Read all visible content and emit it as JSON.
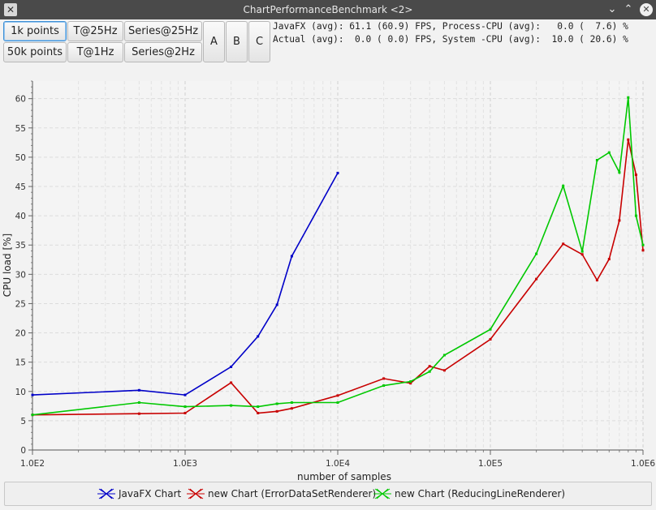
{
  "window": {
    "title": "ChartPerformanceBenchmark <2>",
    "icon": "x-app-icon",
    "controls": [
      "minimize-icon",
      "maximize-icon",
      "close-icon"
    ]
  },
  "toolbar": {
    "btn_1k": "1k points",
    "btn_50k": "50k points",
    "btn_t25": "T@25Hz",
    "btn_t1": "T@1Hz",
    "btn_s25": "Series@25Hz",
    "btn_s2": "Series@2Hz",
    "btn_a": "A",
    "btn_b": "B",
    "btn_c": "C"
  },
  "stats": {
    "line1": "JavaFX (avg): 61.1 (60.9) FPS, Process-CPU (avg):   0.0 (  7.6) %",
    "line2": "Actual (avg):  0.0 ( 0.0) FPS, System -CPU (avg):  10.0 ( 20.6) %"
  },
  "chart_data": {
    "type": "line",
    "xlabel": "number of samples",
    "ylabel": "CPU load [%]",
    "xscale": "log",
    "xlim": [
      100,
      1000000
    ],
    "ylim": [
      0,
      63
    ],
    "x_ticks": [
      100,
      1000,
      10000,
      100000,
      1000000
    ],
    "x_tick_labels": [
      "1.0E2",
      "1.0E3",
      "1.0E4",
      "1.0E5",
      "1.0E6"
    ],
    "y_ticks": [
      0,
      5,
      10,
      15,
      20,
      25,
      30,
      35,
      40,
      45,
      50,
      55,
      60
    ],
    "grid": true,
    "legend_position": "bottom",
    "series": [
      {
        "name": "JavaFX Chart",
        "color": "#0000c8",
        "x": [
          100,
          500,
          1000,
          2000,
          3000,
          4000,
          5000,
          10000
        ],
        "y": [
          9.4,
          10.2,
          9.4,
          14.2,
          19.4,
          24.8,
          33.1,
          47.3
        ]
      },
      {
        "name": "new Chart (ErrorDataSetRenderer)",
        "color": "#c80000",
        "x": [
          100,
          500,
          1000,
          2000,
          3000,
          4000,
          5000,
          10000,
          20000,
          30000,
          40000,
          50000,
          100000,
          200000,
          300000,
          400000,
          500000,
          600000,
          700000,
          800000,
          900000,
          1000000
        ],
        "y": [
          6.0,
          6.2,
          6.3,
          11.5,
          6.3,
          6.6,
          7.1,
          9.3,
          12.2,
          11.4,
          14.3,
          13.6,
          18.9,
          29.2,
          35.2,
          33.4,
          29.0,
          32.6,
          39.2,
          53.0,
          47.0,
          34.1
        ]
      },
      {
        "name": "new Chart (ReducingLineRenderer)",
        "color": "#00c800",
        "x": [
          100,
          500,
          1000,
          2000,
          3000,
          4000,
          5000,
          10000,
          20000,
          30000,
          40000,
          50000,
          100000,
          200000,
          300000,
          400000,
          500000,
          600000,
          700000,
          800000,
          900000,
          1000000
        ],
        "y": [
          6.0,
          8.1,
          7.4,
          7.6,
          7.4,
          7.9,
          8.1,
          8.1,
          11.0,
          11.7,
          13.4,
          16.2,
          20.6,
          33.5,
          45.1,
          33.9,
          49.5,
          50.8,
          47.4,
          60.2,
          40.0,
          35.0
        ]
      }
    ]
  }
}
